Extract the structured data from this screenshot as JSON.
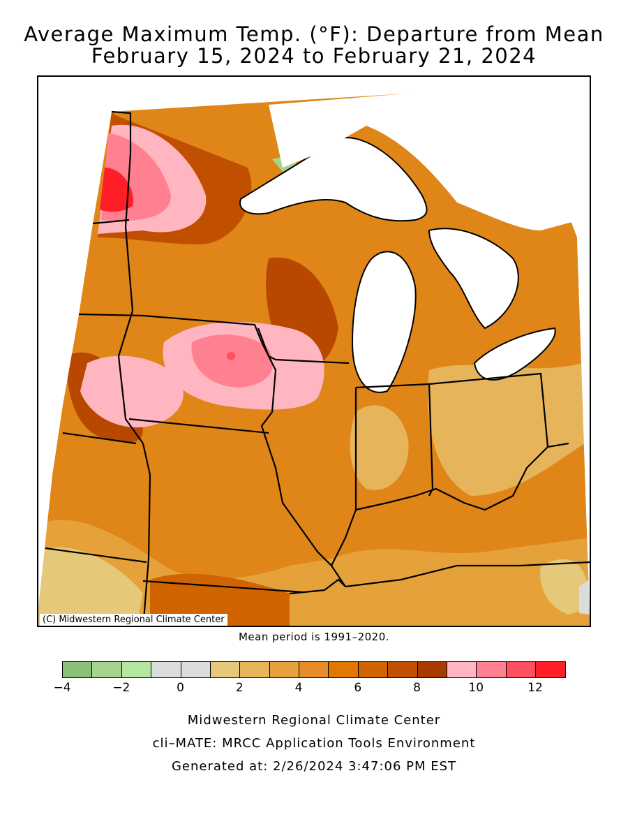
{
  "title": {
    "line1": "Average Maximum Temp. (°F): Departure from Mean",
    "line2": "February 15, 2024 to February 21, 2024"
  },
  "map": {
    "copyright": "(C) Midwestern Regional Climate Center",
    "mean_period": "Mean period is 1991–2020.",
    "regions": "Upper Midwest: Minnesota, Iowa, Wisconsin, Illinois, Michigan, Indiana, Ohio, Missouri, Kentucky"
  },
  "legend": {
    "tick_labels": [
      "−4",
      "−2",
      "0",
      "2",
      "4",
      "6",
      "8",
      "10",
      "12"
    ],
    "colors": [
      "#8cbf78",
      "#a5d48e",
      "#b5e6a0",
      "#dcdcdc",
      "#dcdcdc",
      "#e6c87a",
      "#e6b45a",
      "#e6a03c",
      "#e68c28",
      "#e07800",
      "#d06400",
      "#c05000",
      "#a83c00",
      "#ffb6c1",
      "#ff8090",
      "#ff5060",
      "#ff1e28"
    ]
  },
  "footer": {
    "line1": "Midwestern Regional Climate Center",
    "line2": "cli–MATE: MRCC Application Tools Environment",
    "line3": "Generated at: 2/26/2024 3:47:06 PM EST"
  }
}
